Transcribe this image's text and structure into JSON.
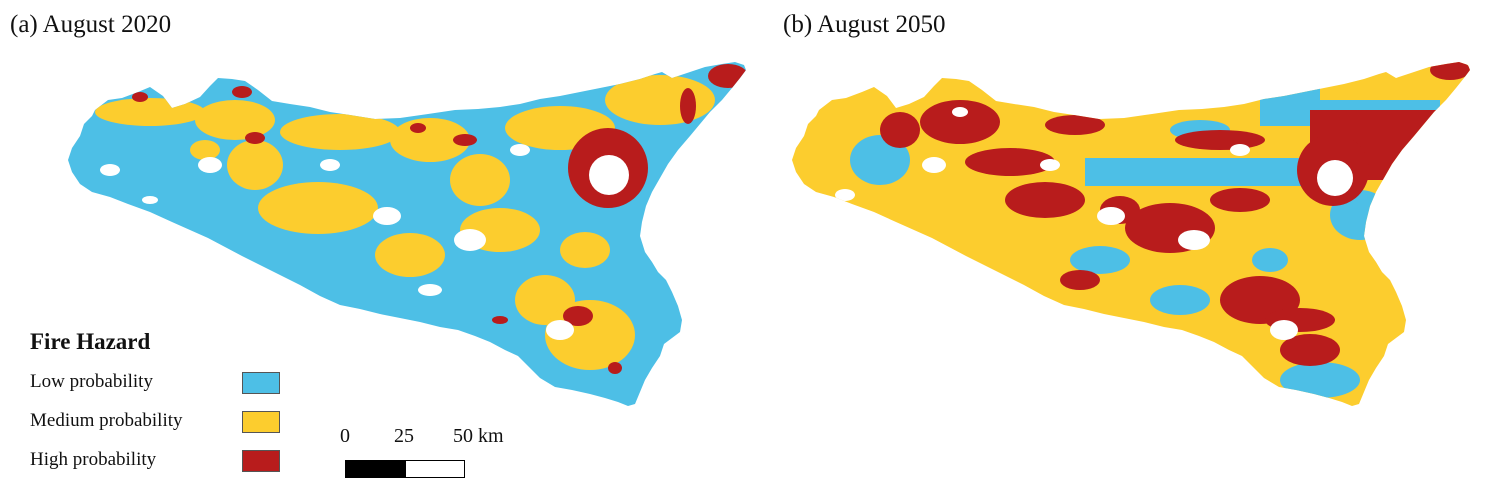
{
  "panels": [
    {
      "title": "(a) August 2020",
      "month": "August",
      "year": 2020
    },
    {
      "title": "(b) August 2050",
      "month": "August",
      "year": 2050
    }
  ],
  "legend": {
    "title": "Fire Hazard",
    "items": [
      {
        "label": "Low probability",
        "color": "#4dbfe6"
      },
      {
        "label": "Medium probability",
        "color": "#fccd2e"
      },
      {
        "label": "High probability",
        "color": "#b81c1c"
      }
    ]
  },
  "scale_bar": {
    "ticks": [
      "0",
      "25",
      "50 km"
    ]
  }
}
